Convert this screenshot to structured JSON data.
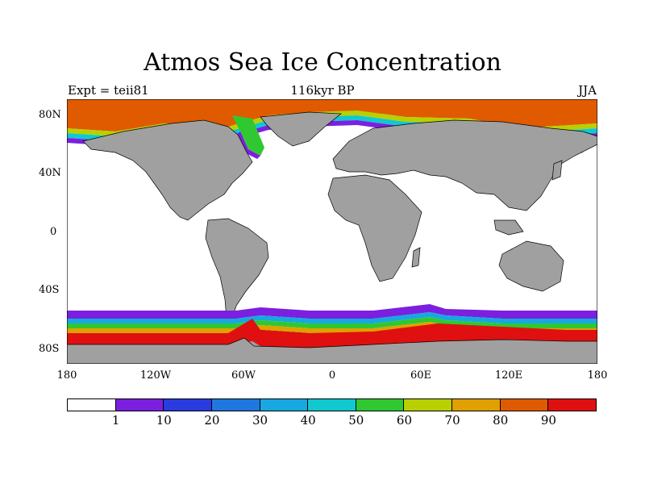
{
  "title": "Atmos Sea Ice Concentration",
  "subtitle": "116kyr BP",
  "left_label": "Expt = teii81",
  "right_label": "JJA",
  "lat_ticks": [
    "80N",
    "40N",
    "0",
    "40S",
    "80S"
  ],
  "lon_ticks": [
    "180",
    "120W",
    "60W",
    "0",
    "60E",
    "120E",
    "180"
  ],
  "colorbar": {
    "colors": [
      "#ffffff",
      "#7b1fe0",
      "#2a3be0",
      "#1e78e0",
      "#16a8e0",
      "#10c8d0",
      "#30c830",
      "#b8d000",
      "#e0a000",
      "#e05a00",
      "#e01010"
    ],
    "labels": [
      "1",
      "10",
      "20",
      "30",
      "40",
      "50",
      "60",
      "70",
      "80",
      "90"
    ]
  },
  "colors": {
    "land": "#a0a0a0",
    "ocean": "#ffffff",
    "ice_high": "#e01010"
  }
}
